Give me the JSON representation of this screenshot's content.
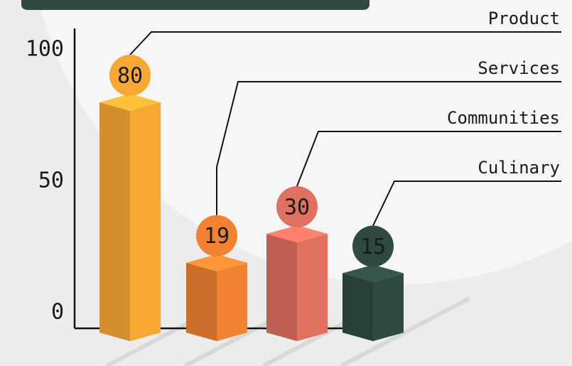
{
  "chart_data": {
    "type": "bar3d",
    "categories": [
      "Product",
      "Services",
      "Communities",
      "Culinary"
    ],
    "values": [
      80,
      19,
      30,
      15
    ],
    "colors": [
      "#f7a832",
      "#f08232",
      "#e07060",
      "#2f4a43"
    ],
    "ylim": [
      0,
      100
    ],
    "yticks": [
      0,
      50,
      100
    ],
    "grid": false
  }
}
